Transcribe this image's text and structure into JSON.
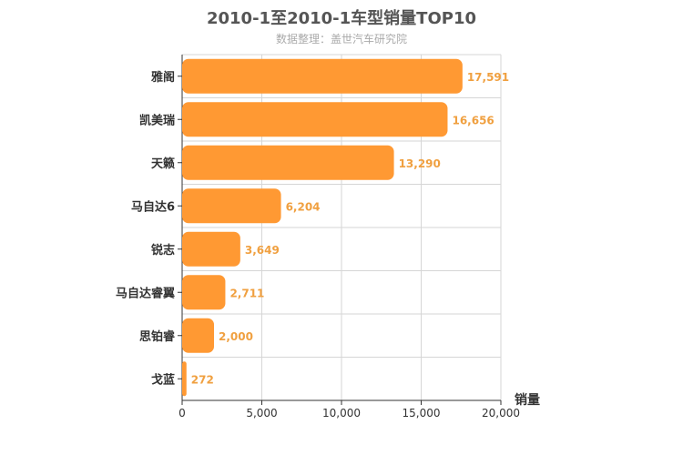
{
  "chart_data": {
    "type": "bar",
    "orientation": "horizontal",
    "title": "2010-1至2010-1车型销量TOP10",
    "subtitle": "数据整理：盖世汽车研究院",
    "xlabel": "销量",
    "ylabel": "",
    "xlim": [
      0,
      20000
    ],
    "x_ticks": [
      0,
      5000,
      10000,
      15000,
      20000
    ],
    "x_tick_labels": [
      "0",
      "5,000",
      "10,000",
      "15,000",
      "20,000"
    ],
    "categories": [
      "雅阁",
      "凯美瑞",
      "天籁",
      "马自达6",
      "锐志",
      "马自达睿翼",
      "思铂睿",
      "戈蓝"
    ],
    "values": [
      17591,
      16656,
      13290,
      6204,
      3649,
      2711,
      2000,
      272
    ],
    "value_labels": [
      "17,591",
      "16,656",
      "13,290",
      "6,204",
      "3,649",
      "2,711",
      "2,000",
      "272"
    ],
    "bar_color": "#ff9933",
    "label_color": "#f0a040",
    "grid": true
  }
}
